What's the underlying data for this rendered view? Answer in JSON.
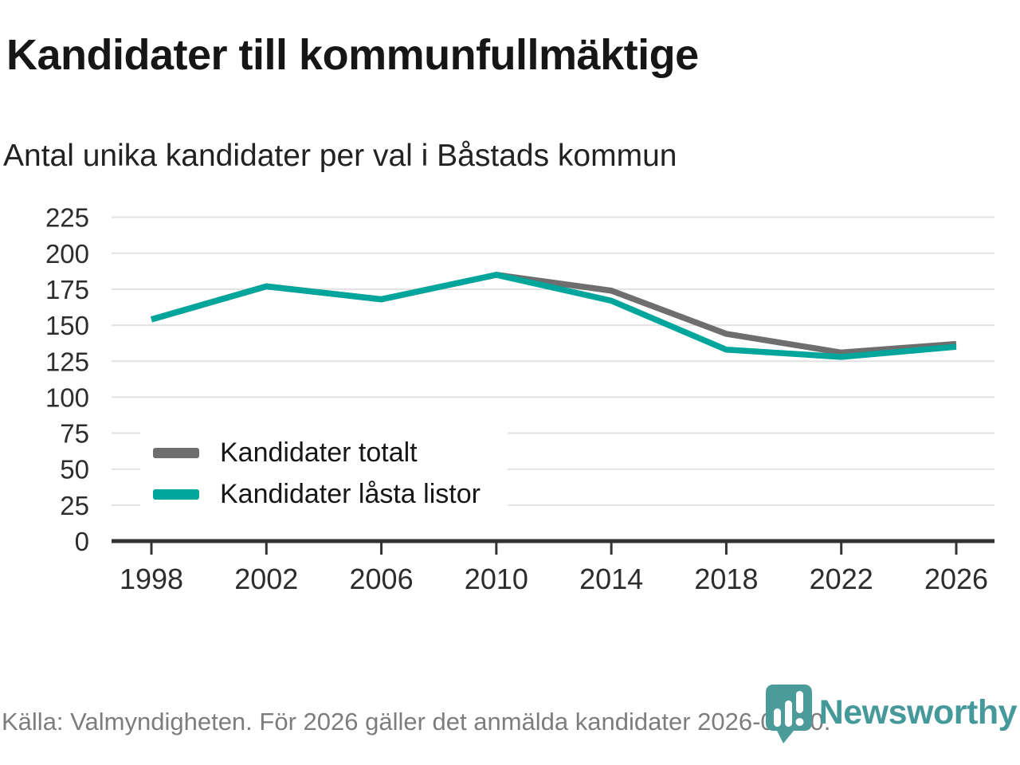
{
  "header": {
    "title": "Kandidater till kommunfullmäktige",
    "subtitle": "Antal unika kandidater per val i Båstads kommun"
  },
  "chart_data": {
    "type": "line",
    "x": [
      1998,
      2002,
      2006,
      2010,
      2014,
      2018,
      2022,
      2026
    ],
    "series": [
      {
        "name": "Kandidater totalt",
        "color": "#6e6e6e",
        "values": [
          154,
          177,
          168,
          185,
          174,
          144,
          131,
          137
        ]
      },
      {
        "name": "Kandidater låsta listor",
        "color": "#00a69b",
        "values": [
          154,
          177,
          168,
          185,
          167,
          133,
          128,
          135
        ]
      }
    ],
    "title": "Kandidater till kommunfullmäktige",
    "subtitle_as_ylabel": "Antal unika kandidater per val i Båstads kommun",
    "xlabel": "",
    "ylabel": "",
    "ylim": [
      0,
      225
    ],
    "ytick_step": 25,
    "yticks": [
      0,
      25,
      50,
      75,
      100,
      125,
      150,
      175,
      200,
      225
    ],
    "grid": "horizontal",
    "legend_position": "inside-lower-left",
    "colors": {
      "grid": "#e2e2e2",
      "axis": "#333333",
      "tick_label": "#2d2d2d",
      "accent_teal": "#00a69b",
      "series_gray": "#6e6e6e"
    }
  },
  "footer": {
    "source": "Källa: Valmyndigheten. För 2026 gäller det anmälda kandidater 2026-04-10.",
    "brand_name": "Newsworthy",
    "brand_color": "#45999a"
  }
}
